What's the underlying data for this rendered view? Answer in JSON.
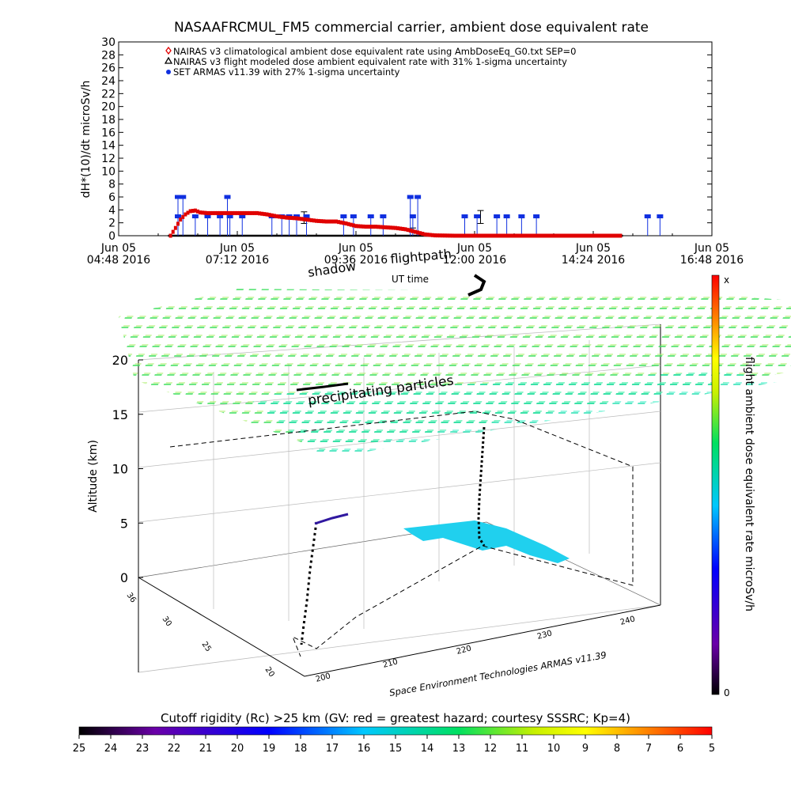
{
  "chart_data": [
    {
      "type": "scatter",
      "title": "NASAAFRCMUL_FM5 commercial carrier, ambient dose equivalent rate",
      "ylabel": "dH*(10)/dt microSv/h",
      "xlabel": "UT time",
      "ylim": [
        0,
        30
      ],
      "yticks": [
        "0",
        "2",
        "4",
        "6",
        "8",
        "10",
        "12",
        "14",
        "16",
        "18",
        "20",
        "22",
        "24",
        "26",
        "28",
        "30"
      ],
      "xlim_hours": [
        4.8,
        16.8
      ],
      "xticks": [
        {
          "hour": 4.8,
          "line1": "Jun 05",
          "line2": "04:48 2016"
        },
        {
          "hour": 7.2,
          "line1": "Jun 05",
          "line2": "07:12 2016"
        },
        {
          "hour": 9.6,
          "line1": "Jun 05",
          "line2": "09:36 2016"
        },
        {
          "hour": 12.0,
          "line1": "Jun 05",
          "line2": "12:00 2016"
        },
        {
          "hour": 14.4,
          "line1": "Jun 05",
          "line2": "14:24 2016"
        },
        {
          "hour": 16.8,
          "line1": "Jun 05",
          "line2": "16:48 2016"
        }
      ],
      "legend": [
        {
          "marker": "diamond",
          "color": "#e00000",
          "label": "NAIRAS v3 climatological ambient dose equivalent rate using AmbDoseEq_G0.txt SEP=0"
        },
        {
          "marker": "triangle",
          "color": "#000000",
          "label": "NAIRAS v3 flight modeled dose ambient equivalent rate with 31% 1-sigma uncertainty"
        },
        {
          "marker": "dot",
          "color": "#1030e0",
          "label": "SET ARMAS v11.39 with 27% 1-sigma uncertainty"
        }
      ],
      "legend_position": "top-left",
      "series": [
        {
          "name": "NAIRAS v3 climatological ambient dose equivalent rate using AmbDoseEq_G0.txt SEP=0",
          "color": "#e00000",
          "points": [
            [
              5.85,
              0
            ],
            [
              5.95,
              1.2
            ],
            [
              6.05,
              2.5
            ],
            [
              6.15,
              3.3
            ],
            [
              6.25,
              3.8
            ],
            [
              6.35,
              3.9
            ],
            [
              6.45,
              3.6
            ],
            [
              6.6,
              3.5
            ],
            [
              6.8,
              3.5
            ],
            [
              7.0,
              3.5
            ],
            [
              7.2,
              3.5
            ],
            [
              7.4,
              3.5
            ],
            [
              7.6,
              3.5
            ],
            [
              7.8,
              3.3
            ],
            [
              8.0,
              3.0
            ],
            [
              8.2,
              2.8
            ],
            [
              8.4,
              2.7
            ],
            [
              8.6,
              2.5
            ],
            [
              8.8,
              2.3
            ],
            [
              9.0,
              2.2
            ],
            [
              9.2,
              2.2
            ],
            [
              9.4,
              1.9
            ],
            [
              9.6,
              1.5
            ],
            [
              9.8,
              1.4
            ],
            [
              10.0,
              1.4
            ],
            [
              10.2,
              1.3
            ],
            [
              10.4,
              1.2
            ],
            [
              10.6,
              1.0
            ],
            [
              10.8,
              0.6
            ],
            [
              11.0,
              0.2
            ],
            [
              11.2,
              0.05
            ],
            [
              11.6,
              0
            ],
            [
              12.0,
              0
            ],
            [
              12.4,
              0
            ],
            [
              12.8,
              0
            ],
            [
              13.2,
              0
            ],
            [
              13.6,
              0
            ],
            [
              14.0,
              0
            ],
            [
              14.4,
              0
            ],
            [
              14.8,
              0
            ],
            [
              15.0,
              0
            ]
          ]
        },
        {
          "name": "NAIRAS v3 flight modeled dose ambient equivalent rate with 31% 1-sigma uncertainty",
          "color": "#000000",
          "points": [
            [
              5.8,
              0
            ],
            [
              6.5,
              0
            ],
            [
              7.5,
              0
            ],
            [
              8.5,
              0
            ],
            [
              9.5,
              0
            ],
            [
              10.5,
              0
            ],
            [
              11.5,
              0
            ],
            [
              12.5,
              0
            ],
            [
              13.5,
              0
            ],
            [
              14.5,
              0
            ],
            [
              15.0,
              0
            ]
          ],
          "error_bars": [
            [
              8.55,
              2.8,
              0.9
            ],
            [
              12.12,
              2.9,
              1.0
            ],
            [
              10.75,
              0.9,
              0.3
            ]
          ]
        },
        {
          "name": "SET ARMAS v11.39 with 27% 1-sigma uncertainty",
          "color": "#1030e0",
          "points": [
            [
              6.0,
              6
            ],
            [
              6.1,
              6
            ],
            [
              6.0,
              3
            ],
            [
              6.35,
              3
            ],
            [
              6.6,
              3
            ],
            [
              6.85,
              3
            ],
            [
              7.0,
              6
            ],
            [
              7.05,
              3
            ],
            [
              7.3,
              3
            ],
            [
              7.9,
              3
            ],
            [
              8.1,
              3
            ],
            [
              8.25,
              3
            ],
            [
              8.4,
              3
            ],
            [
              8.6,
              3
            ],
            [
              9.35,
              3
            ],
            [
              9.55,
              3
            ],
            [
              9.9,
              3
            ],
            [
              10.15,
              3
            ],
            [
              10.7,
              6
            ],
            [
              10.85,
              6
            ],
            [
              10.75,
              3
            ],
            [
              11.8,
              3
            ],
            [
              12.05,
              3
            ],
            [
              12.45,
              3
            ],
            [
              12.65,
              3
            ],
            [
              12.95,
              3
            ],
            [
              13.25,
              3
            ],
            [
              15.5,
              3
            ],
            [
              15.75,
              3
            ]
          ]
        }
      ]
    },
    {
      "type": "scatter",
      "ylabel": "Altitude (km)",
      "ylim": [
        0,
        20
      ],
      "yticks": [
        "0",
        "5",
        "10",
        "15",
        "20"
      ],
      "depth_ticks": [
        "36",
        "30",
        "25",
        "20"
      ],
      "x_ticks": [
        "200",
        "210",
        "220",
        "230",
        "240"
      ],
      "credit": "Space Environment Technologies ARMAS v11.39",
      "annotations": [
        "flightpath",
        "shadow",
        "precipitating particles"
      ],
      "colorbar": {
        "label": "flight ambient dose equivalent rate microSv/h",
        "top": "x",
        "bottom": "0",
        "colors": [
          "#000000",
          "#6a00a8",
          "#0000ff",
          "#00c8ff",
          "#00e060",
          "#c8f000",
          "#ffff00",
          "#ff8000",
          "#ff0000"
        ]
      },
      "bottom_colorbar": {
        "label": "Cutoff rigidity (Rc) >25 km (GV: red = greatest hazard; courtesy SSSRC; Kp=4)",
        "ticks": [
          "25",
          "24",
          "23",
          "22",
          "21",
          "20",
          "19",
          "18",
          "17",
          "16",
          "15",
          "14",
          "13",
          "12",
          "11",
          "10",
          "9",
          "8",
          "7",
          "6",
          "5"
        ]
      }
    }
  ]
}
